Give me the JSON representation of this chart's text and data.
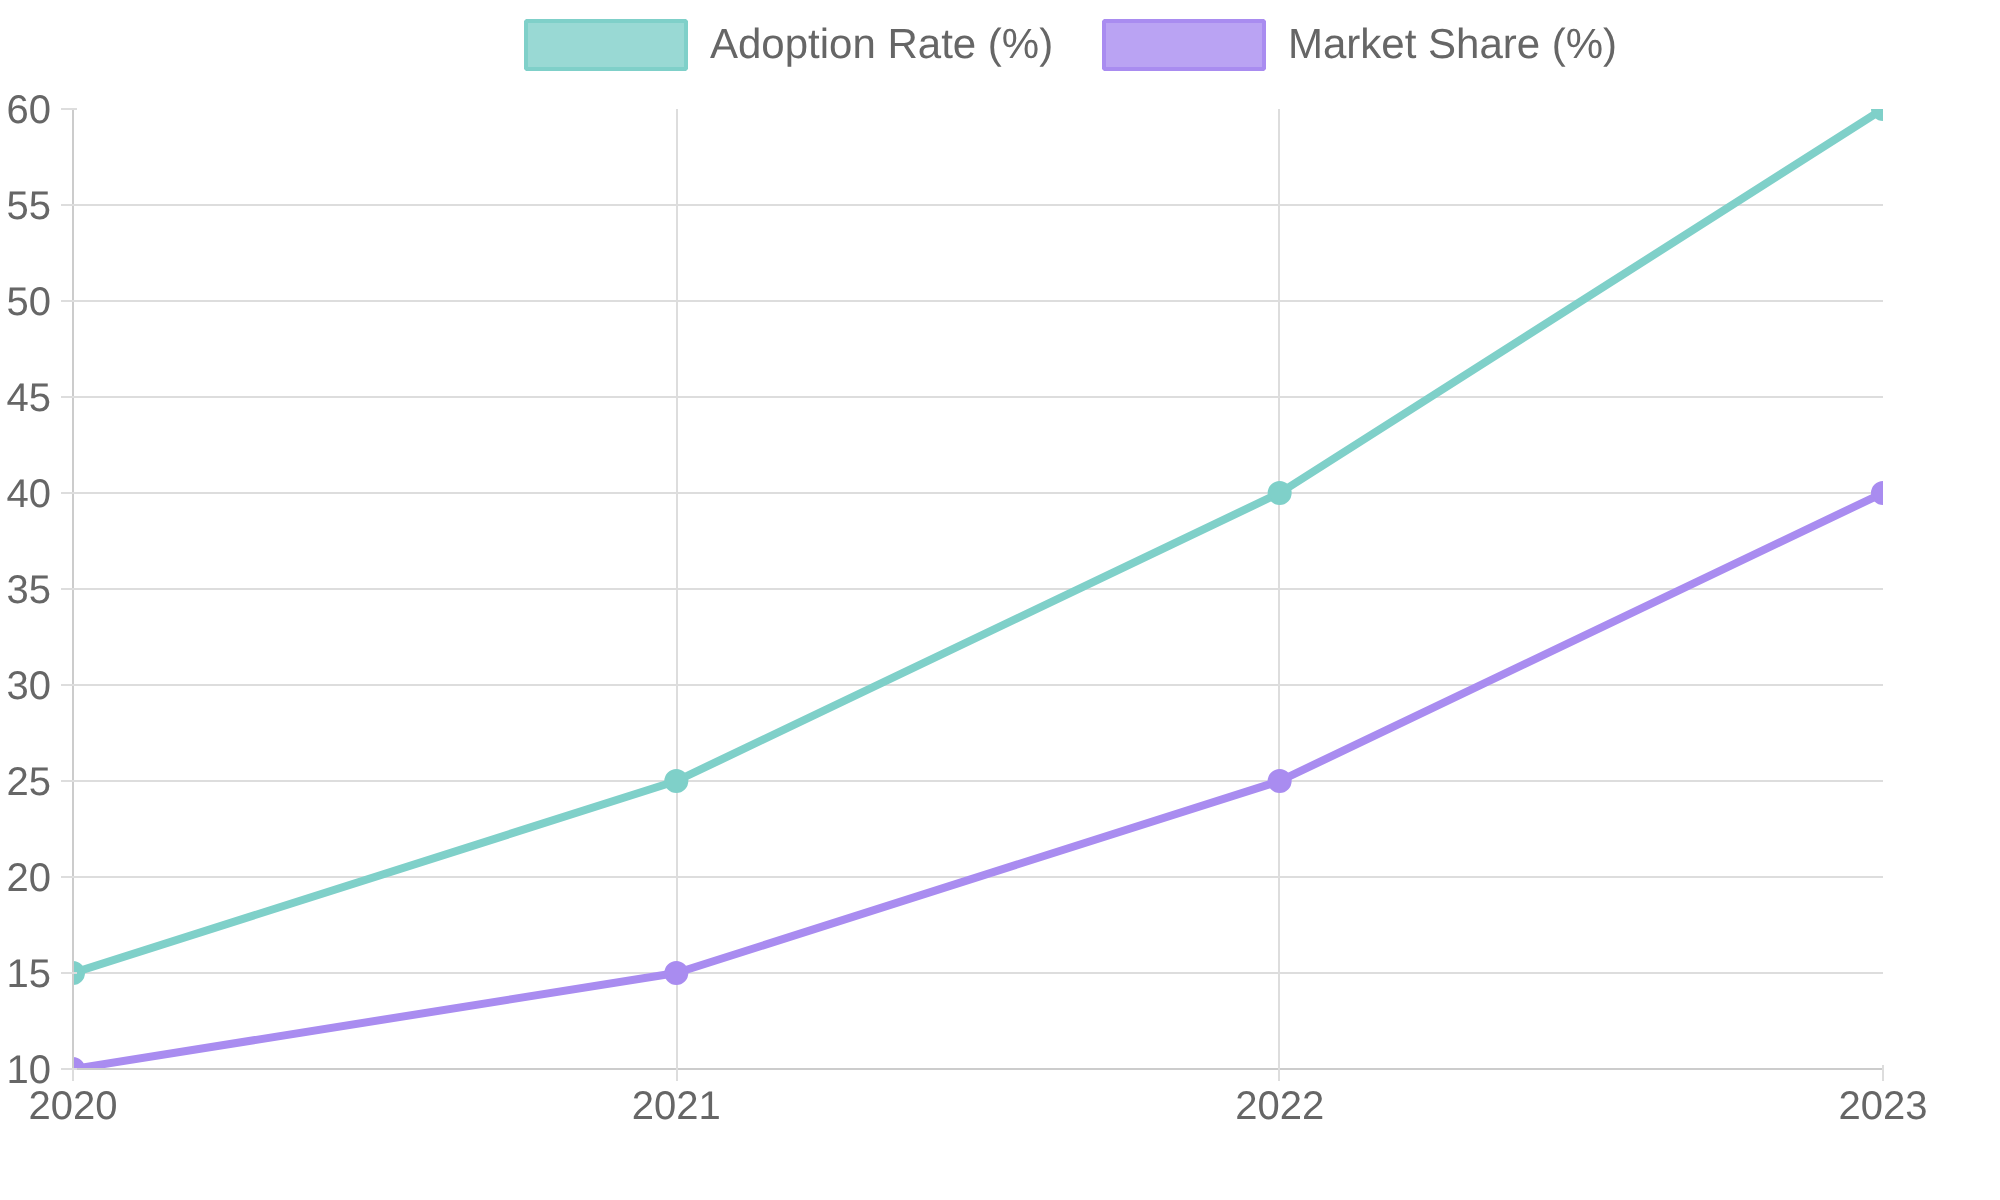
{
  "chart_data": {
    "type": "line",
    "categories": [
      "2020",
      "2021",
      "2022",
      "2023"
    ],
    "series": [
      {
        "name": "Adoption Rate (%)",
        "color": "#7fd0c9",
        "values": [
          15,
          25,
          40,
          60
        ]
      },
      {
        "name": "Market Share (%)",
        "color": "#a98cf0",
        "values": [
          10,
          15,
          25,
          40
        ]
      }
    ],
    "ylim": [
      10,
      60
    ],
    "yticks": [
      10,
      15,
      20,
      25,
      30,
      35,
      40,
      45,
      50,
      55,
      60
    ],
    "grid": true,
    "legend": "top",
    "marker": "circle"
  }
}
